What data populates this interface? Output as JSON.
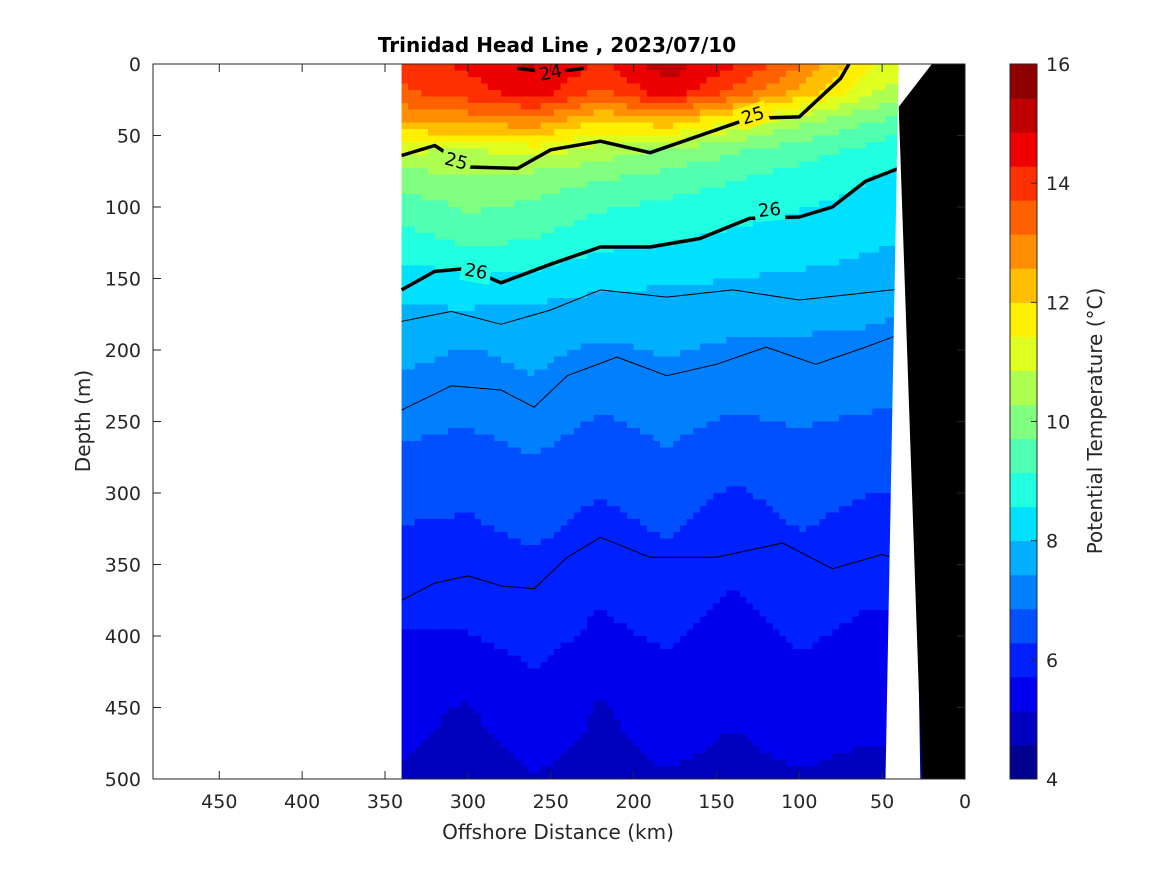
{
  "chart_data": {
    "type": "contour",
    "title": "Trinidad Head Line , 2023/07/10",
    "xlabel": "Offshore Distance (km)",
    "ylabel": "Depth (m)",
    "xlim": [
      490,
      0
    ],
    "ylim": [
      0,
      500
    ],
    "x_reversed": true,
    "y_reversed": true,
    "x_ticks": [
      "450",
      "400",
      "350",
      "300",
      "250",
      "200",
      "150",
      "100",
      "50",
      "0"
    ],
    "y_ticks": [
      "0",
      "50",
      "100",
      "150",
      "200",
      "250",
      "300",
      "350",
      "400",
      "450",
      "500"
    ],
    "data_extent_km": [
      340,
      20
    ],
    "colorbar": {
      "label": "Potential Temperature (°C)",
      "range": [
        4,
        16
      ],
      "ticks": [
        "4",
        "6",
        "8",
        "10",
        "12",
        "14",
        "16"
      ],
      "colormap": "jet",
      "colors": [
        "#00008f",
        "#0000bf",
        "#0000ef",
        "#0020ff",
        "#0050ff",
        "#0080ff",
        "#00b0ff",
        "#00e0ff",
        "#20ffdf",
        "#50ffaf",
        "#80ff80",
        "#afff50",
        "#dfff20",
        "#ffef00",
        "#ffbf00",
        "#ff8f00",
        "#ff6000",
        "#ff3000",
        "#ef0000",
        "#bf0000",
        "#8f0000"
      ]
    },
    "temperature_field": {
      "depths_m": [
        0,
        20,
        40,
        60,
        80,
        100,
        125,
        150,
        175,
        200,
        250,
        300,
        350,
        400,
        450,
        500
      ],
      "distance_km": [
        340,
        300,
        260,
        220,
        180,
        140,
        100,
        60,
        20
      ],
      "note_values_celsius_by_depth": [
        [
          14.0,
          14.4,
          15.0,
          14.2,
          15.2,
          14.4,
          13.2,
          11.6,
          10.6
        ],
        [
          13.6,
          14.0,
          14.6,
          13.6,
          14.6,
          13.6,
          12.4,
          11.0,
          10.2
        ],
        [
          12.6,
          12.8,
          12.9,
          12.0,
          12.4,
          11.4,
          10.4,
          9.8,
          9.2
        ],
        [
          11.0,
          10.8,
          11.2,
          10.6,
          10.2,
          9.8,
          9.4,
          9.0,
          8.6
        ],
        [
          10.0,
          10.2,
          10.0,
          9.8,
          9.5,
          9.2,
          8.9,
          8.6,
          8.3
        ],
        [
          9.4,
          9.8,
          9.6,
          9.2,
          9.0,
          8.8,
          8.6,
          8.4,
          8.1
        ],
        [
          8.9,
          9.2,
          9.1,
          8.7,
          8.6,
          8.4,
          8.3,
          8.1,
          7.9
        ],
        [
          8.3,
          8.5,
          8.4,
          8.1,
          8.1,
          8.0,
          7.9,
          7.8,
          7.6
        ],
        [
          7.9,
          7.9,
          7.8,
          7.8,
          7.7,
          7.7,
          7.6,
          7.5,
          7.4
        ],
        [
          7.6,
          7.4,
          7.6,
          7.3,
          7.5,
          7.3,
          7.3,
          7.3,
          7.1
        ],
        [
          7.0,
          6.9,
          7.1,
          6.8,
          7.0,
          6.8,
          6.9,
          6.8,
          6.7
        ],
        [
          6.5,
          6.4,
          6.6,
          6.3,
          6.6,
          6.2,
          6.5,
          6.3,
          6.3
        ],
        [
          6.0,
          6.0,
          6.2,
          5.9,
          6.1,
          5.8,
          6.1,
          5.9,
          5.9
        ],
        [
          5.7,
          5.7,
          5.9,
          5.6,
          5.8,
          5.5,
          5.8,
          5.6,
          5.6
        ],
        [
          5.3,
          5.1,
          5.5,
          5.1,
          5.4,
          5.2,
          5.4,
          5.3,
          5.3
        ],
        [
          5.1,
          4.9,
          5.1,
          5.0,
          5.1,
          5.0,
          5.1,
          5.0,
          5.0
        ]
      ]
    },
    "density_contours": [
      {
        "label": "24",
        "bold": true,
        "points_km_m": [
          [
            270,
            3
          ],
          [
            250,
            6
          ],
          [
            230,
            3
          ]
        ]
      },
      {
        "label": "25",
        "bold": true,
        "points_km_m": [
          [
            340,
            64
          ],
          [
            320,
            57
          ],
          [
            300,
            72
          ],
          [
            270,
            73
          ],
          [
            250,
            60
          ],
          [
            220,
            54
          ],
          [
            190,
            62
          ],
          [
            160,
            50
          ],
          [
            130,
            38
          ],
          [
            100,
            37
          ],
          [
            75,
            10
          ],
          [
            70,
            0
          ]
        ]
      },
      {
        "label": "26",
        "bold": true,
        "points_km_m": [
          [
            340,
            158
          ],
          [
            320,
            145
          ],
          [
            300,
            143
          ],
          [
            280,
            153
          ],
          [
            250,
            140
          ],
          [
            220,
            128
          ],
          [
            190,
            128
          ],
          [
            160,
            122
          ],
          [
            130,
            108
          ],
          [
            100,
            107
          ],
          [
            80,
            100
          ],
          [
            60,
            82
          ],
          [
            40,
            73
          ],
          [
            20,
            40
          ]
        ]
      },
      {
        "label": "",
        "bold": false,
        "points_km_m": [
          [
            340,
            180
          ],
          [
            310,
            173
          ],
          [
            280,
            182
          ],
          [
            250,
            172
          ],
          [
            220,
            158
          ],
          [
            180,
            163
          ],
          [
            140,
            158
          ],
          [
            100,
            165
          ],
          [
            60,
            160
          ],
          [
            20,
            155
          ]
        ]
      },
      {
        "label": "",
        "bold": false,
        "points_km_m": [
          [
            340,
            242
          ],
          [
            310,
            225
          ],
          [
            280,
            228
          ],
          [
            260,
            240
          ],
          [
            240,
            218
          ],
          [
            210,
            205
          ],
          [
            180,
            218
          ],
          [
            150,
            210
          ],
          [
            120,
            198
          ],
          [
            90,
            210
          ],
          [
            60,
            198
          ],
          [
            30,
            185
          ],
          [
            22,
            186
          ]
        ]
      },
      {
        "label": "",
        "bold": false,
        "points_km_m": [
          [
            340,
            375
          ],
          [
            320,
            363
          ],
          [
            300,
            358
          ],
          [
            280,
            365
          ],
          [
            260,
            367
          ],
          [
            240,
            345
          ],
          [
            220,
            331
          ],
          [
            190,
            345
          ],
          [
            150,
            345
          ],
          [
            110,
            335
          ],
          [
            80,
            353
          ],
          [
            50,
            343
          ],
          [
            30,
            350
          ],
          [
            25,
            370
          ]
        ]
      }
    ],
    "bathymetry_mask": [
      [
        0,
        0
      ],
      [
        0,
        500
      ],
      [
        26,
        500
      ],
      [
        40,
        30
      ],
      [
        20,
        0
      ]
    ],
    "annotations": [
      "24",
      "25",
      "25",
      "26",
      "26"
    ]
  }
}
